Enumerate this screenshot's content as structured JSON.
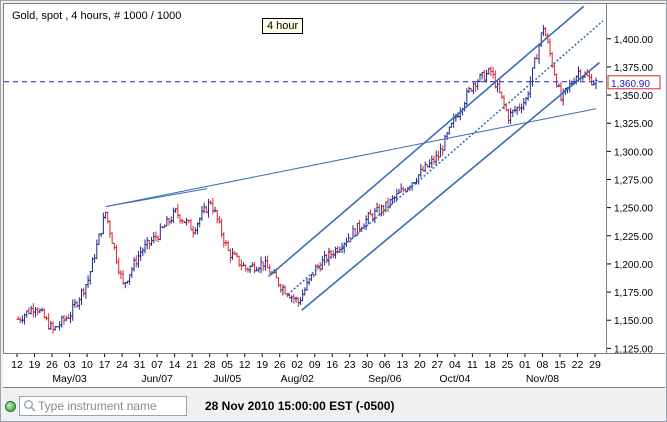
{
  "chart": {
    "title": "Gold, spot , 4 hours, # 1000 / 1000",
    "period_label": "4 hour",
    "last_price_label": "1,360.90"
  },
  "bottom_bar": {
    "search_placeholder": "Type instrument name",
    "datetime": "28 Nov 2010 15:00:00  EST (-0500)"
  },
  "colors": {
    "up_bar": "#1f2a8c",
    "down_bar": "#d7282f",
    "trendline": "#3b6db5",
    "price_line": "#1a1acb"
  },
  "chart_data": {
    "type": "ohlc",
    "y_ticks": [
      "1,125.00",
      "1,150.00",
      "1,175.00",
      "1,200.00",
      "1,225.00",
      "1,250.00",
      "1,275.00",
      "1,300.00",
      "1,325.00",
      "1,350.00",
      "1,375.00",
      "1,400.00"
    ],
    "y_range": [
      1120,
      1430
    ],
    "x_day_ticks": [
      "12",
      "19",
      "26",
      "03",
      "10",
      "17",
      "24",
      "31",
      "07",
      "14",
      "21",
      "28",
      "05",
      "12",
      "19",
      "26",
      "02",
      "09",
      "16",
      "23",
      "30",
      "06",
      "13",
      "20",
      "27",
      "04",
      "11",
      "18",
      "25",
      "01",
      "08",
      "15",
      "22",
      "29"
    ],
    "x_month_ticks": [
      "May/03",
      "Jun/07",
      "Jul/05",
      "Aug/02",
      "Sep/06",
      "Oct/04",
      "Nov/08"
    ],
    "last_price": 1360.9,
    "price_path_weekly": [
      {
        "week": "12",
        "value": 1150
      },
      {
        "week": "19",
        "value": 1162
      },
      {
        "week": "26",
        "value": 1140
      },
      {
        "week": "03",
        "value": 1155
      },
      {
        "week": "10",
        "value": 1185
      },
      {
        "week": "17",
        "value": 1245
      },
      {
        "week": "24",
        "value": 1180
      },
      {
        "week": "31",
        "value": 1210
      },
      {
        "week": "07",
        "value": 1225
      },
      {
        "week": "14",
        "value": 1245
      },
      {
        "week": "21",
        "value": 1230
      },
      {
        "week": "28",
        "value": 1255
      },
      {
        "week": "05",
        "value": 1210
      },
      {
        "week": "12",
        "value": 1195
      },
      {
        "week": "19",
        "value": 1200
      },
      {
        "week": "26",
        "value": 1180
      },
      {
        "week": "02",
        "value": 1165
      },
      {
        "week": "09",
        "value": 1195
      },
      {
        "week": "16",
        "value": 1210
      },
      {
        "week": "23",
        "value": 1225
      },
      {
        "week": "30",
        "value": 1240
      },
      {
        "week": "06",
        "value": 1250
      },
      {
        "week": "13",
        "value": 1265
      },
      {
        "week": "20",
        "value": 1280
      },
      {
        "week": "27",
        "value": 1295
      },
      {
        "week": "04",
        "value": 1330
      },
      {
        "week": "11",
        "value": 1360
      },
      {
        "week": "18",
        "value": 1370
      },
      {
        "week": "25",
        "value": 1330
      },
      {
        "week": "01",
        "value": 1345
      },
      {
        "week": "08",
        "value": 1410
      },
      {
        "week": "15",
        "value": 1345
      },
      {
        "week": "22",
        "value": 1370
      },
      {
        "week": "29",
        "value": 1360
      }
    ]
  }
}
